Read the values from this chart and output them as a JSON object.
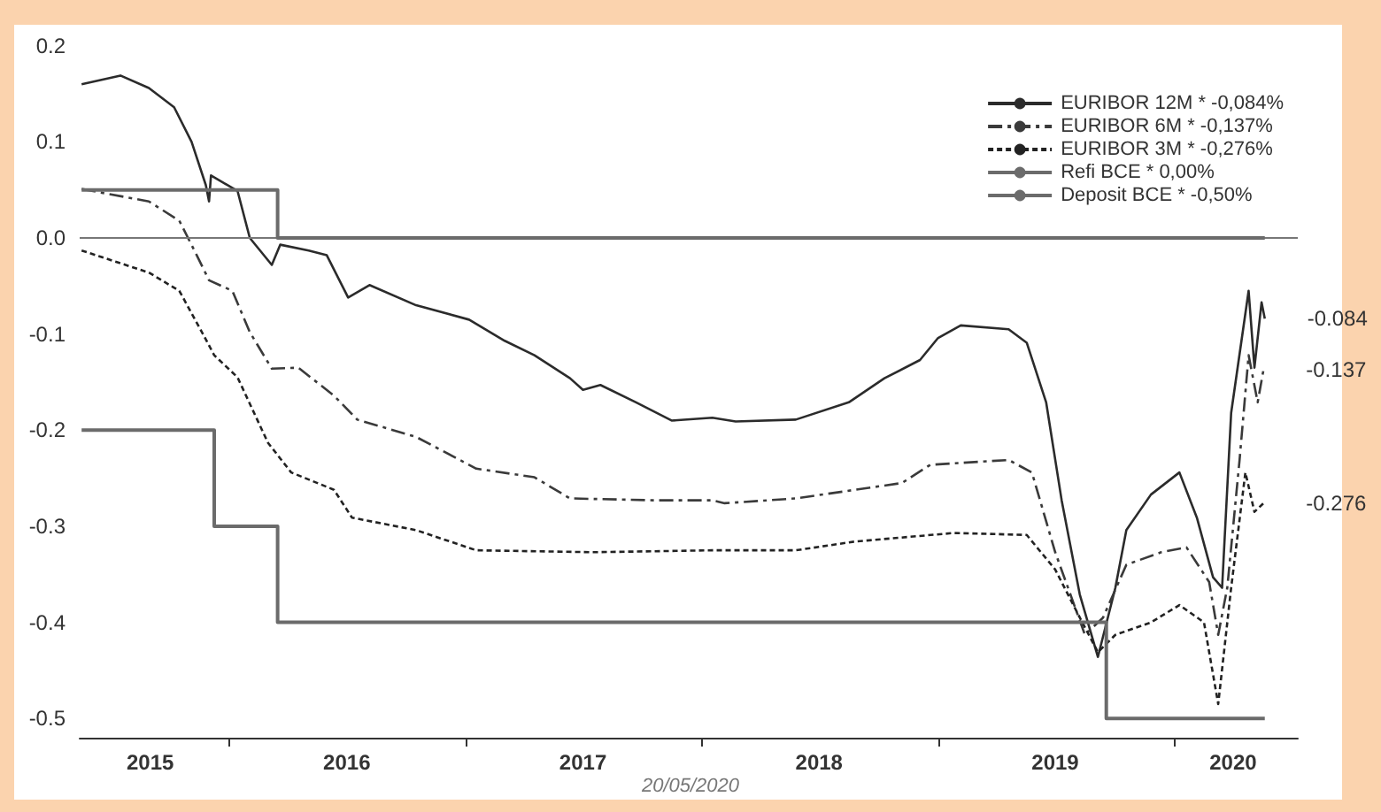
{
  "chart_data": {
    "type": "line",
    "x": [
      "2015-05-18",
      "2015-07-17",
      "2015-08-30",
      "2015-10-08",
      "2015-11-04",
      "2015-11-26",
      "2015-12-01",
      "2015-12-04",
      "2016-01-14",
      "2016-02-02",
      "2016-03-07",
      "2016-03-20",
      "2016-05-03",
      "2016-05-31",
      "2016-07-03",
      "2016-08-05",
      "2016-10-16",
      "2017-01-06",
      "2017-03-02",
      "2017-04-17",
      "2017-06-11",
      "2017-07-01",
      "2017-07-28",
      "2017-09-21",
      "2017-11-15",
      "2018-01-17",
      "2018-02-22",
      "2018-05-26",
      "2018-08-16",
      "2018-10-10",
      "2018-12-04",
      "2019-01-01",
      "2019-02-05",
      "2019-04-20",
      "2019-05-18",
      "2019-06-17",
      "2019-07-11",
      "2019-08-08",
      "2019-09-05",
      "2019-10-02",
      "2019-10-19",
      "2019-11-26",
      "2020-01-09",
      "2020-02-05",
      "2020-03-01",
      "2020-03-15",
      "2020-03-29",
      "2020-04-25",
      "2020-05-04",
      "2020-05-15",
      "2020-05-20"
    ],
    "series": [
      {
        "name": "EURIBOR 12M * -0,084%",
        "color": "#2b2b2b",
        "line_style": "solid",
        "values": [
          0.16,
          0.169,
          0.156,
          0.136,
          0.1,
          0.055,
          0.038,
          0.065,
          0.049,
          0,
          -0.028,
          -0.007,
          -0.013,
          -0.018,
          -0.062,
          -0.049,
          -0.07,
          -0.085,
          -0.107,
          -0.122,
          -0.146,
          -0.158,
          -0.153,
          -0.171,
          -0.19,
          -0.187,
          -0.191,
          -0.189,
          -0.171,
          -0.146,
          -0.127,
          -0.104,
          -0.091,
          -0.095,
          -0.109,
          -0.171,
          -0.273,
          -0.371,
          -0.436,
          -0.364,
          -0.304,
          -0.267,
          -0.244,
          -0.291,
          -0.353,
          -0.364,
          -0.182,
          -0.055,
          -0.135,
          -0.067,
          -0.084
        ]
      },
      {
        "name": "EURIBOR 6M * -0,137%",
        "color": "#3a3a3a",
        "line_style": "dashed",
        "x": [
          "2015-05-18",
          "2015-08-30",
          "2015-10-16",
          "2015-11-12",
          "2015-12-01",
          "2016-01-06",
          "2016-02-02",
          "2016-03-07",
          "2016-04-17",
          "2016-06-11",
          "2016-07-17",
          "2016-10-16",
          "2017-01-17",
          "2017-04-17",
          "2017-06-11",
          "2017-10-19",
          "2018-01-17",
          "2018-02-05",
          "2018-05-26",
          "2018-11-06",
          "2018-12-20",
          "2019-04-20",
          "2019-05-26",
          "2019-07-01",
          "2019-08-16",
          "2019-09-13",
          "2019-10-19",
          "2019-12-12",
          "2020-01-20",
          "2020-02-24",
          "2020-03-09",
          "2020-03-23",
          "2020-04-11",
          "2020-04-25",
          "2020-05-09",
          "2020-05-18"
        ],
        "values": [
          0.051,
          0.038,
          0.018,
          -0.018,
          -0.044,
          -0.055,
          -0.098,
          -0.136,
          -0.135,
          -0.164,
          -0.189,
          -0.207,
          -0.24,
          -0.249,
          -0.271,
          -0.273,
          -0.273,
          -0.276,
          -0.271,
          -0.255,
          -0.236,
          -0.231,
          -0.244,
          -0.327,
          -0.413,
          -0.395,
          -0.34,
          -0.327,
          -0.322,
          -0.358,
          -0.413,
          -0.364,
          -0.231,
          -0.122,
          -0.171,
          -0.137
        ]
      },
      {
        "name": "EURIBOR 3M * -0,276%",
        "color": "#222222",
        "line_style": "dotted",
        "x": [
          "2015-05-18",
          "2015-08-30",
          "2015-10-16",
          "2015-11-20",
          "2015-12-09",
          "2016-01-14",
          "2016-03-01",
          "2016-04-06",
          "2016-06-11",
          "2016-07-09",
          "2016-10-16",
          "2017-01-17",
          "2017-07-17",
          "2018-01-17",
          "2018-05-26",
          "2018-08-24",
          "2019-01-25",
          "2019-05-18",
          "2019-07-01",
          "2019-08-08",
          "2019-09-05",
          "2019-10-02",
          "2019-11-26",
          "2020-01-09",
          "2020-02-16",
          "2020-03-09",
          "2020-03-29",
          "2020-04-20",
          "2020-05-04",
          "2020-05-18"
        ],
        "values": [
          -0.013,
          -0.036,
          -0.055,
          -0.098,
          -0.122,
          -0.145,
          -0.213,
          -0.244,
          -0.262,
          -0.291,
          -0.304,
          -0.325,
          -0.327,
          -0.325,
          -0.325,
          -0.316,
          -0.307,
          -0.309,
          -0.345,
          -0.395,
          -0.431,
          -0.413,
          -0.4,
          -0.382,
          -0.4,
          -0.485,
          -0.364,
          -0.244,
          -0.285,
          -0.276
        ]
      },
      {
        "name": "Refi BCE * 0,00%",
        "type": "step",
        "color": "#6b6b6b",
        "line_style": "solid",
        "x": [
          "2015-05-18",
          "2016-03-16",
          "2020-05-20"
        ],
        "values": [
          0.05,
          0,
          0
        ]
      },
      {
        "name": "Deposit BCE * -0,50%",
        "type": "step",
        "color": "#6b6b6b",
        "line_style": "solid",
        "x": [
          "2015-05-18",
          "2015-12-09",
          "2016-03-16",
          "2019-09-18",
          "2020-05-20"
        ],
        "values": [
          -0.2,
          -0.3,
          -0.4,
          -0.5,
          -0.5
        ]
      }
    ],
    "xlim": [
      "2015-05-15",
      "2020-07-10"
    ],
    "xticks": [
      {
        "value": "2015-09-01",
        "label": "2015"
      },
      {
        "value": "2016-01-01",
        "label": null
      },
      {
        "value": "2016-07-01",
        "label": "2016"
      },
      {
        "value": "2017-01-01",
        "label": null
      },
      {
        "value": "2017-07-01",
        "label": "2017"
      },
      {
        "value": "2018-01-01",
        "label": null
      },
      {
        "value": "2018-07-01",
        "label": "2018"
      },
      {
        "value": "2019-01-01",
        "label": null
      },
      {
        "value": "2019-07-01",
        "label": "2019"
      },
      {
        "value": "2020-01-01",
        "label": null
      },
      {
        "value": "2020-04-01",
        "label": "2020"
      }
    ],
    "ylim": [
      -0.52,
      0.22
    ],
    "yticks": [
      0.2,
      0.1,
      {
        "value": 0,
        "label": "0.0"
      },
      -0.1,
      -0.2,
      -0.3,
      -0.4,
      -0.5
    ],
    "ref_lines": [
      {
        "axis": "y",
        "value": 0,
        "color": "#777777"
      }
    ],
    "annotations": [
      {
        "text": "-0.084",
        "x": "2020-05-20",
        "y": -0.084
      },
      {
        "text": "-0.137",
        "x": "2020-05-18",
        "y": -0.137
      },
      {
        "text": "-0.276",
        "x": "2020-05-18",
        "y": -0.276
      },
      "20/05/2020"
    ],
    "legend": "top right",
    "grid": false,
    "marker": "none"
  }
}
